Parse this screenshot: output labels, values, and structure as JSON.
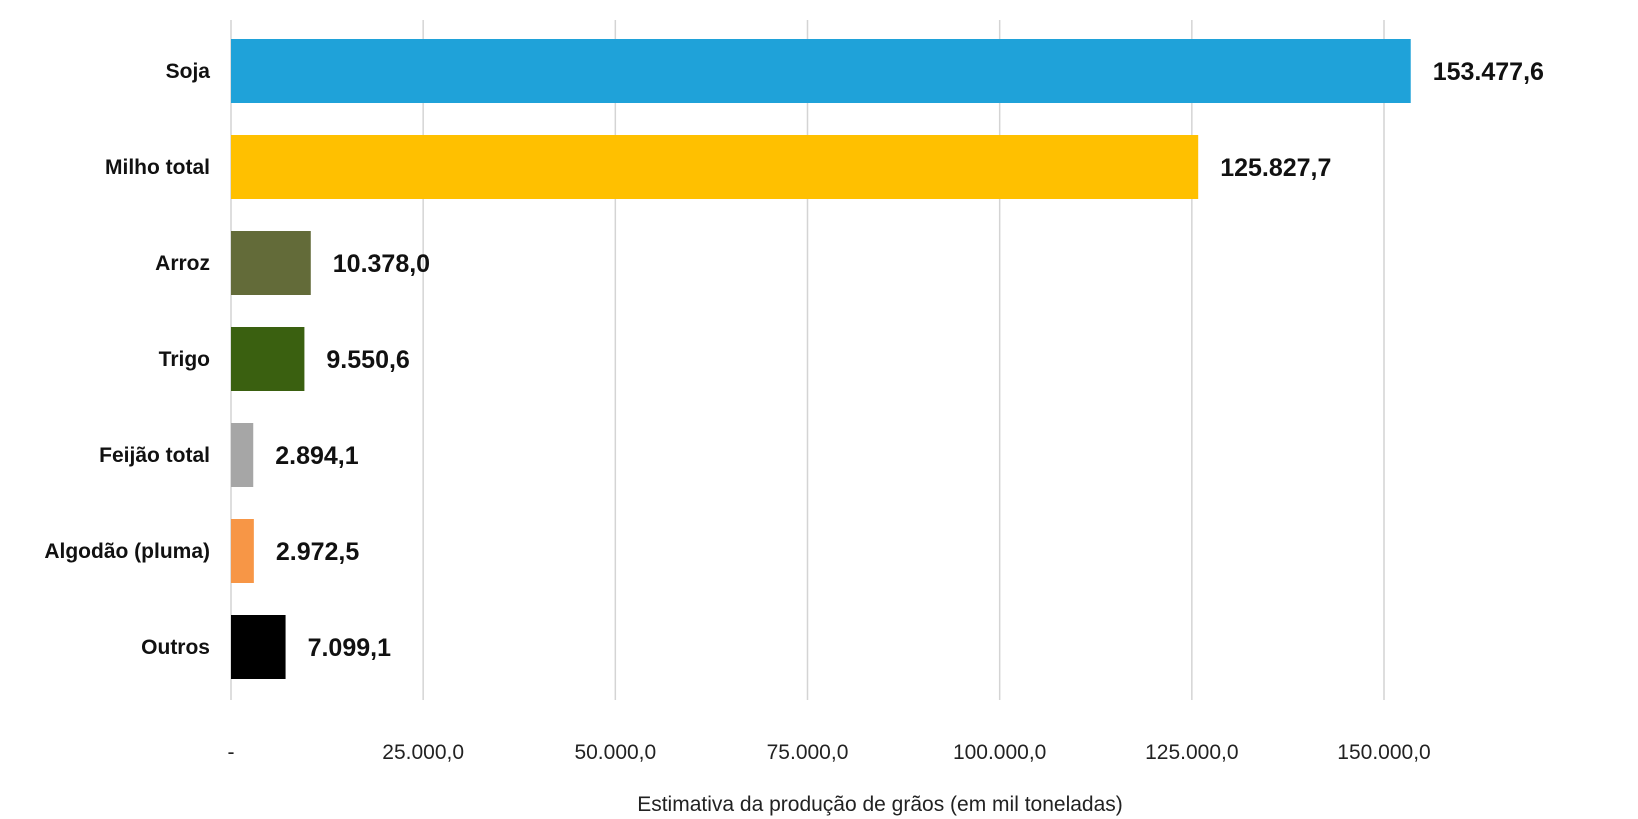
{
  "chart_data": {
    "type": "bar",
    "orientation": "horizontal",
    "title": "",
    "xlabel": "Estimativa da produção de grãos (em mil toneladas)",
    "ylabel": "",
    "xlim": [
      0,
      160000
    ],
    "grid": true,
    "legend": "none",
    "categories": [
      "Soja",
      "Milho total",
      "Arroz",
      "Trigo",
      "Feijão total",
      "Algodão (pluma)",
      "Outros"
    ],
    "values": [
      153477.6,
      125827.7,
      10378.0,
      9550.6,
      2894.1,
      2972.5,
      7099.1
    ],
    "value_labels": [
      "153.477,6",
      "125.827,7",
      "10.378,0",
      "9.550,6",
      "2.894,1",
      "2.972,5",
      "7.099,1"
    ],
    "bar_colors": [
      "#1fa2d9",
      "#ffc000",
      "#636b39",
      "#3a6010",
      "#a6a6a6",
      "#f79646",
      "#000000"
    ],
    "ticks": [
      0,
      25000,
      50000,
      75000,
      100000,
      125000,
      150000
    ],
    "tick_labels": [
      "-",
      "25.000,0",
      "50.000,0",
      "75.000,0",
      "100.000,0",
      "125.000,0",
      "150.000,0"
    ]
  }
}
